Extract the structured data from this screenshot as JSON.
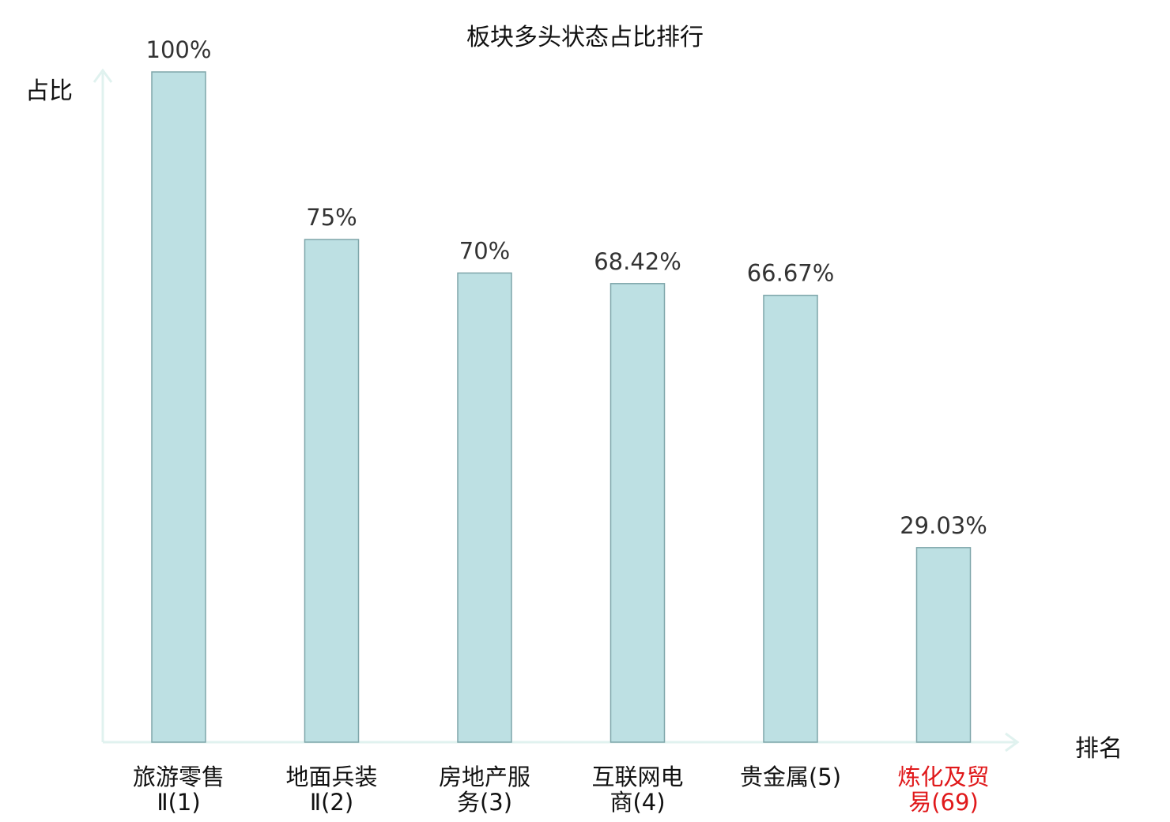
{
  "chart_data": {
    "type": "bar",
    "title": "板块多头状态占比排行",
    "ylabel": "占比",
    "xlabel": "排名",
    "ylim": [
      0,
      100
    ],
    "grid": false,
    "categories": [
      {
        "name": "旅游零售\nⅡ",
        "rank": "(1)",
        "highlight": false
      },
      {
        "name": "地面兵装\nⅡ",
        "rank": "(2)",
        "highlight": false
      },
      {
        "name": "房地产服\n务",
        "rank": "(3)",
        "highlight": false
      },
      {
        "name": "互联网电\n商",
        "rank": "(4)",
        "highlight": false
      },
      {
        "name": "贵金属",
        "rank": "(5)",
        "highlight": false
      },
      {
        "name": "炼化及贸\n易",
        "rank": "(69)",
        "highlight": true
      }
    ],
    "values": [
      100,
      75,
      70,
      68.42,
      66.67,
      29.03
    ],
    "value_labels": [
      "100%",
      "75%",
      "70%",
      "68.42%",
      "66.67%",
      "29.03%"
    ],
    "colors": {
      "bar_fill": "#bde0e3",
      "bar_stroke": "#7fa6aa",
      "axis": "#e0f2ef",
      "label": "#111111",
      "highlight": "#e0191b"
    }
  }
}
